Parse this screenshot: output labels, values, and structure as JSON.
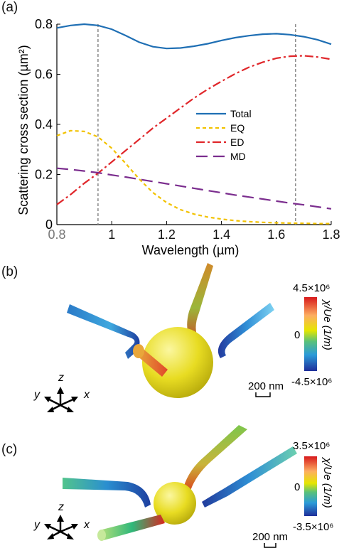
{
  "panels": {
    "a": "(a)",
    "b": "(b)",
    "c": "(c)"
  },
  "chart_data": {
    "type": "line",
    "xlabel": "Wavelength (µm)",
    "ylabel": "Scattering cross section (µm²)",
    "xlim": [
      0.8,
      1.8
    ],
    "ylim": [
      0,
      0.8
    ],
    "xticks": [
      "0.8",
      "1",
      "1.2",
      "1.4",
      "1.6",
      "1.8"
    ],
    "yticks": [
      "0",
      "0.2",
      "0.4",
      "0.6",
      "0.8"
    ],
    "vlines": [
      0.95,
      1.67
    ],
    "legend_position": "center-right",
    "series": [
      {
        "name": "Total",
        "color": "#1f6fb4",
        "dash": "solid",
        "x": [
          0.8,
          0.85,
          0.9,
          0.95,
          1.0,
          1.05,
          1.1,
          1.15,
          1.2,
          1.25,
          1.3,
          1.35,
          1.4,
          1.45,
          1.5,
          1.55,
          1.6,
          1.65,
          1.7,
          1.75,
          1.8
        ],
        "y": [
          0.785,
          0.795,
          0.8,
          0.795,
          0.78,
          0.755,
          0.728,
          0.71,
          0.703,
          0.705,
          0.712,
          0.722,
          0.735,
          0.746,
          0.754,
          0.76,
          0.762,
          0.758,
          0.75,
          0.738,
          0.72
        ]
      },
      {
        "name": "EQ",
        "color": "#f2c200",
        "dash": "dashed",
        "x": [
          0.8,
          0.85,
          0.9,
          0.95,
          1.0,
          1.05,
          1.1,
          1.15,
          1.2,
          1.25,
          1.3,
          1.35,
          1.4,
          1.45,
          1.5,
          1.55,
          1.6,
          1.65,
          1.7,
          1.75,
          1.8
        ],
        "y": [
          0.355,
          0.375,
          0.372,
          0.35,
          0.305,
          0.245,
          0.182,
          0.128,
          0.088,
          0.06,
          0.042,
          0.03,
          0.022,
          0.016,
          0.012,
          0.009,
          0.007,
          0.006,
          0.005,
          0.004,
          0.004
        ]
      },
      {
        "name": "ED",
        "color": "#e0262a",
        "dash": "dashdot",
        "x": [
          0.8,
          0.85,
          0.9,
          0.95,
          1.0,
          1.05,
          1.1,
          1.15,
          1.2,
          1.25,
          1.3,
          1.35,
          1.4,
          1.45,
          1.5,
          1.55,
          1.6,
          1.65,
          1.7,
          1.75,
          1.8
        ],
        "y": [
          0.08,
          0.12,
          0.165,
          0.205,
          0.25,
          0.295,
          0.34,
          0.385,
          0.425,
          0.465,
          0.505,
          0.54,
          0.572,
          0.602,
          0.628,
          0.648,
          0.664,
          0.672,
          0.674,
          0.669,
          0.66
        ]
      },
      {
        "name": "MD",
        "color": "#7b2d8e",
        "dash": "longdash",
        "x": [
          0.8,
          0.85,
          0.9,
          0.95,
          1.0,
          1.05,
          1.1,
          1.15,
          1.2,
          1.25,
          1.3,
          1.35,
          1.4,
          1.45,
          1.5,
          1.55,
          1.6,
          1.65,
          1.7,
          1.75,
          1.8
        ],
        "y": [
          0.225,
          0.22,
          0.214,
          0.207,
          0.198,
          0.19,
          0.181,
          0.172,
          0.163,
          0.154,
          0.145,
          0.136,
          0.127,
          0.118,
          0.11,
          0.102,
          0.094,
          0.086,
          0.079,
          0.071,
          0.063
        ]
      }
    ]
  },
  "field_b": {
    "colorbar_max": "4.5×10⁶",
    "colorbar_mid": "0",
    "colorbar_min": "-4.5×10⁶",
    "colorbar_label": "χ/Ue (1/m)",
    "scale_bar": "200 nm",
    "axes": {
      "x": "x",
      "y": "y",
      "z": "z"
    }
  },
  "field_c": {
    "colorbar_max": "3.5×10⁶",
    "colorbar_mid": "0",
    "colorbar_min": "-3.5×10⁶",
    "colorbar_label": "χ/Ue (1/m)",
    "scale_bar": "200 nm",
    "axes": {
      "x": "x",
      "y": "y",
      "z": "z"
    }
  }
}
